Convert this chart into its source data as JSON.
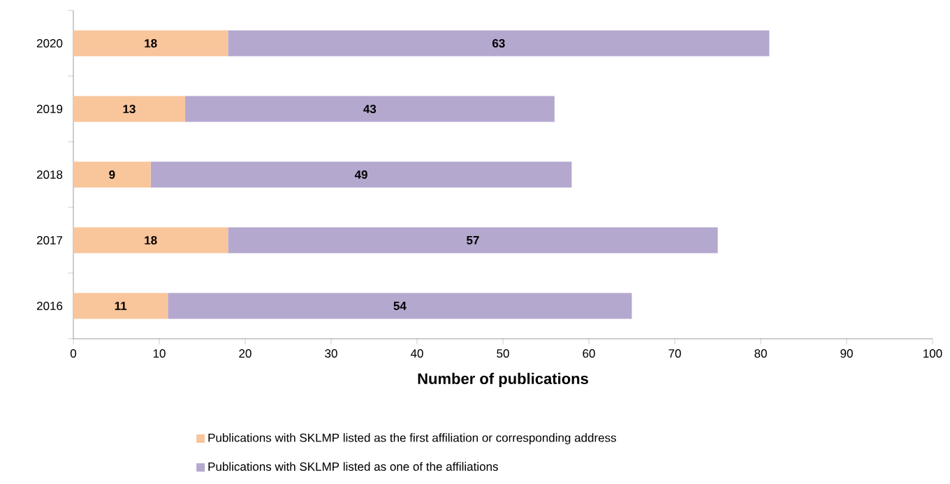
{
  "chart_data": {
    "type": "bar",
    "orientation": "horizontal",
    "stacked": true,
    "xlabel": "Number of publications",
    "categories": [
      "2020",
      "2019",
      "2018",
      "2017",
      "2016"
    ],
    "series": [
      {
        "name": "Publications with SKLMP listed as the first affiliation or corresponding address",
        "color": "#f9c59b",
        "values": [
          18,
          13,
          9,
          18,
          11
        ]
      },
      {
        "name": "Publications with SKLMP listed as one of the affiliations",
        "color": "#b5a8cf",
        "values": [
          63,
          43,
          49,
          57,
          54
        ]
      }
    ],
    "xlim": [
      0,
      100
    ],
    "xticks": [
      0,
      10,
      20,
      30,
      40,
      50,
      60,
      70,
      80,
      90,
      100
    ],
    "data_labels": true,
    "legend": "bottom"
  }
}
